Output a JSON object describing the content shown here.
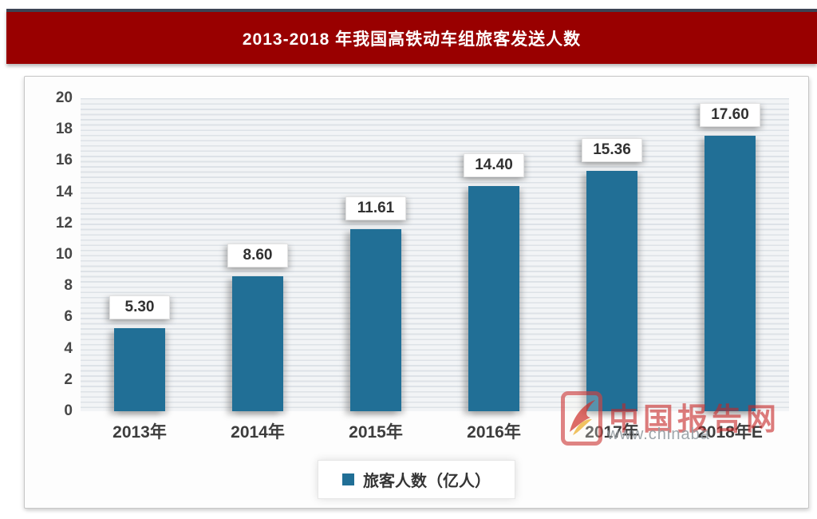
{
  "banner": {
    "title": "2013-2018 年我国高铁动车组旅客发送人数",
    "bg_color": "#990000",
    "top_border_color": "#3c4454"
  },
  "chart_data": {
    "type": "bar",
    "title": "2013-2018 年我国高铁动车组旅客发送人数",
    "categories": [
      "2013年",
      "2014年",
      "2015年",
      "2016年",
      "2017年",
      "2018年E"
    ],
    "series": [
      {
        "name": "旅客人数（亿人）",
        "values": [
          5.3,
          8.6,
          11.61,
          14.4,
          15.36,
          17.6
        ]
      }
    ],
    "value_labels": [
      "5.30",
      "8.60",
      "11.61",
      "14.40",
      "15.36",
      "17.60"
    ],
    "ylim": [
      0,
      20
    ],
    "yticks": [
      0,
      2,
      4,
      6,
      8,
      10,
      12,
      14,
      16,
      18,
      20
    ],
    "grid": "horizontal-stripes",
    "legend_position": "bottom",
    "bar_color": "#216F96"
  },
  "legend": {
    "label": "旅客人数（亿人）",
    "swatch_color": "#216F96"
  },
  "watermark": {
    "brand": "中国报告网",
    "url_fragment": "www.chinaba",
    "logo": "phoenix-logo"
  }
}
